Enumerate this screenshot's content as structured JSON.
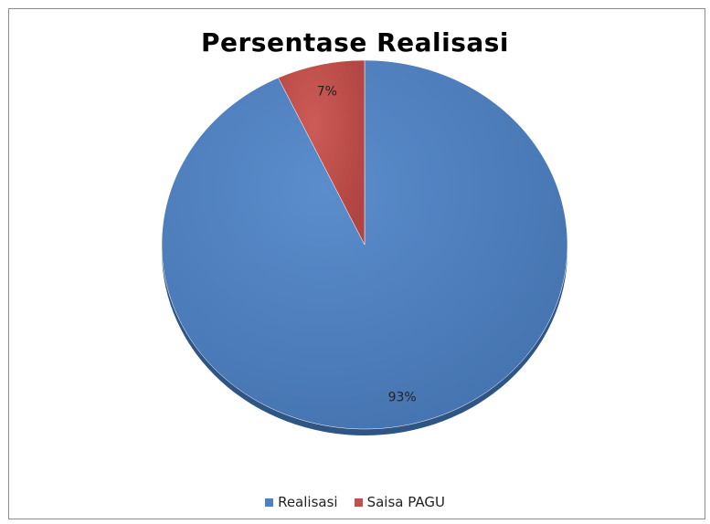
{
  "chart_data": {
    "type": "pie",
    "title": "Persentase Realisasi",
    "slices": [
      {
        "name": "Realisasi",
        "value": 93,
        "label": "93%",
        "color": "#4f81bd"
      },
      {
        "name": "Saisa PAGU",
        "value": 7,
        "label": "7%",
        "color": "#c0504d"
      }
    ],
    "legend_position": "bottom"
  }
}
